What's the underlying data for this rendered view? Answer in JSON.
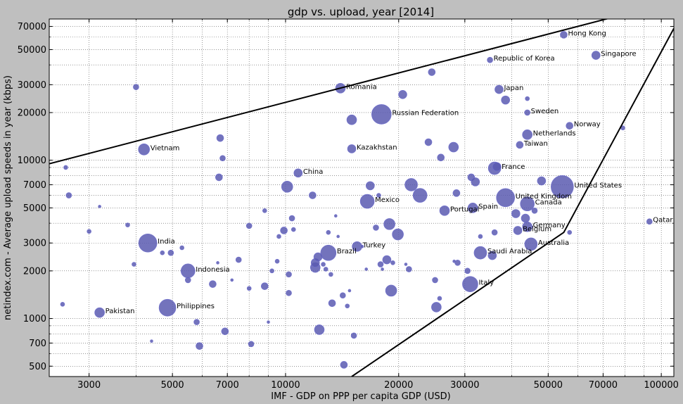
{
  "chart_data": {
    "type": "scatter",
    "title": "gdp vs. upload, year [2014]",
    "xlabel": "IMF - GDP on PPP per capita GDP (USD)",
    "ylabel": "netindex.com - Average upload speeds in year (kbps)",
    "xscale": "log",
    "yscale": "log",
    "xlim": [
      2350,
      108000
    ],
    "ylim": [
      430,
      78000
    ],
    "grid": true,
    "x_ticks": [
      3000,
      5000,
      7000,
      10000,
      20000,
      30000,
      50000,
      70000,
      100000
    ],
    "x_tick_labels": [
      "3000",
      "5000",
      "7000",
      "10000",
      "20000",
      "30000",
      "50000",
      "70000",
      "100000"
    ],
    "y_ticks": [
      500,
      700,
      1000,
      2000,
      3000,
      5000,
      7000,
      10000,
      20000,
      30000,
      50000,
      70000
    ],
    "y_tick_labels": [
      "500",
      "700",
      "1000",
      "2000",
      "3000",
      "5000",
      "7000",
      "10000",
      "20000",
      "30000",
      "50000",
      "70000"
    ],
    "colors": {
      "point_fill": "#5b5bb0",
      "point_stroke": "#6f6fd0",
      "background": "#bfbfbf",
      "plot_area": "#ffffff",
      "boundary_line": "#000000"
    },
    "boundary_lines": [
      [
        [
          2350,
          9500
        ],
        [
          82000,
          85000
        ]
      ],
      [
        [
          15000,
          430
        ],
        [
          55000,
          3500
        ],
        [
          108000,
          68000
        ]
      ]
    ],
    "points": [
      {
        "label": "Hong Kong",
        "x": 55000,
        "y": 62000,
        "size": 5
      },
      {
        "label": "Singapore",
        "x": 67000,
        "y": 46000,
        "size": 6
      },
      {
        "label": "Republic of Korea",
        "x": 35000,
        "y": 43000,
        "size": 4
      },
      {
        "label": "Japan",
        "x": 37000,
        "y": 28000,
        "size": 6
      },
      {
        "label": "Sweden",
        "x": 44000,
        "y": 20000,
        "size": 4
      },
      {
        "label": "Norway",
        "x": 57000,
        "y": 16500,
        "size": 5
      },
      {
        "label": "Netherlands",
        "x": 44000,
        "y": 14500,
        "size": 7
      },
      {
        "label": "Taiwan",
        "x": 42000,
        "y": 12500,
        "size": 5
      },
      {
        "label": "Romania",
        "x": 14000,
        "y": 28500,
        "size": 7
      },
      {
        "label": "Russian Federation",
        "x": 18000,
        "y": 19500,
        "size": 14
      },
      {
        "label": "Kazakhstan",
        "x": 15000,
        "y": 11800,
        "size": 6
      },
      {
        "label": "Vietnam",
        "x": 4200,
        "y": 11700,
        "size": 8
      },
      {
        "label": "China",
        "x": 10800,
        "y": 8300,
        "size": 6
      },
      {
        "label": "France",
        "x": 36000,
        "y": 8900,
        "size": 9
      },
      {
        "label": "United States",
        "x": 54500,
        "y": 6800,
        "size": 16
      },
      {
        "label": "United Kingdom",
        "x": 38500,
        "y": 5800,
        "size": 13
      },
      {
        "label": "Canada",
        "x": 44000,
        "y": 5300,
        "size": 10
      },
      {
        "label": "Mexico",
        "x": 16500,
        "y": 5500,
        "size": 10
      },
      {
        "label": "Spain",
        "x": 31500,
        "y": 5000,
        "size": 7
      },
      {
        "label": "Portugal",
        "x": 26500,
        "y": 4800,
        "size": 7
      },
      {
        "label": "Germany",
        "x": 44000,
        "y": 3800,
        "size": 7
      },
      {
        "label": "Belgium",
        "x": 41500,
        "y": 3600,
        "size": 6
      },
      {
        "label": "Australia",
        "x": 45000,
        "y": 2950,
        "size": 9
      },
      {
        "label": "Qatar",
        "x": 93000,
        "y": 4100,
        "size": 4
      },
      {
        "label": "India",
        "x": 4300,
        "y": 3000,
        "size": 13
      },
      {
        "label": "Brazil",
        "x": 13000,
        "y": 2600,
        "size": 11
      },
      {
        "label": "Turkey",
        "x": 15500,
        "y": 2850,
        "size": 7
      },
      {
        "label": "Saudi Arabia",
        "x": 33000,
        "y": 2600,
        "size": 9
      },
      {
        "label": "Indonesia",
        "x": 5500,
        "y": 2000,
        "size": 10
      },
      {
        "label": "Italy",
        "x": 31000,
        "y": 1650,
        "size": 11
      },
      {
        "label": "Philippines",
        "x": 4850,
        "y": 1170,
        "size": 12
      },
      {
        "label": "Pakistan",
        "x": 3200,
        "y": 1090,
        "size": 7
      },
      {
        "label": "",
        "x": 4000,
        "y": 29000,
        "size": 4
      },
      {
        "label": "",
        "x": 2600,
        "y": 9000,
        "size": 3
      },
      {
        "label": "",
        "x": 2650,
        "y": 6000,
        "size": 4
      },
      {
        "label": "",
        "x": 3200,
        "y": 5100,
        "size": 2
      },
      {
        "label": "",
        "x": 3800,
        "y": 3900,
        "size": 3
      },
      {
        "label": "",
        "x": 3000,
        "y": 3550,
        "size": 3
      },
      {
        "label": "",
        "x": 3950,
        "y": 2200,
        "size": 3
      },
      {
        "label": "",
        "x": 2550,
        "y": 1230,
        "size": 3
      },
      {
        "label": "",
        "x": 4400,
        "y": 720,
        "size": 2
      },
      {
        "label": "",
        "x": 4700,
        "y": 2600,
        "size": 3
      },
      {
        "label": "",
        "x": 4950,
        "y": 2600,
        "size": 4
      },
      {
        "label": "",
        "x": 5300,
        "y": 2800,
        "size": 3
      },
      {
        "label": "",
        "x": 5500,
        "y": 1750,
        "size": 4
      },
      {
        "label": "",
        "x": 5800,
        "y": 950,
        "size": 4
      },
      {
        "label": "",
        "x": 5900,
        "y": 670,
        "size": 5
      },
      {
        "label": "",
        "x": 6400,
        "y": 1650,
        "size": 5
      },
      {
        "label": "",
        "x": 6600,
        "y": 2250,
        "size": 2
      },
      {
        "label": "",
        "x": 6700,
        "y": 13800,
        "size": 5
      },
      {
        "label": "",
        "x": 6800,
        "y": 10300,
        "size": 4
      },
      {
        "label": "",
        "x": 6650,
        "y": 7800,
        "size": 5
      },
      {
        "label": "",
        "x": 6900,
        "y": 830,
        "size": 5
      },
      {
        "label": "",
        "x": 7200,
        "y": 1750,
        "size": 2
      },
      {
        "label": "",
        "x": 7500,
        "y": 2350,
        "size": 4
      },
      {
        "label": "",
        "x": 8000,
        "y": 1550,
        "size": 3
      },
      {
        "label": "",
        "x": 8000,
        "y": 3850,
        "size": 4
      },
      {
        "label": "",
        "x": 8100,
        "y": 690,
        "size": 4
      },
      {
        "label": "",
        "x": 8800,
        "y": 1600,
        "size": 5
      },
      {
        "label": "",
        "x": 8800,
        "y": 4800,
        "size": 3
      },
      {
        "label": "",
        "x": 9000,
        "y": 950,
        "size": 2
      },
      {
        "label": "",
        "x": 9200,
        "y": 2000,
        "size": 3
      },
      {
        "label": "",
        "x": 9500,
        "y": 2300,
        "size": 3
      },
      {
        "label": "",
        "x": 9600,
        "y": 3300,
        "size": 3
      },
      {
        "label": "",
        "x": 9900,
        "y": 3600,
        "size": 5
      },
      {
        "label": "",
        "x": 10100,
        "y": 6800,
        "size": 8
      },
      {
        "label": "",
        "x": 10200,
        "y": 1900,
        "size": 4
      },
      {
        "label": "",
        "x": 10200,
        "y": 1450,
        "size": 4
      },
      {
        "label": "",
        "x": 10400,
        "y": 4300,
        "size": 4
      },
      {
        "label": "",
        "x": 10500,
        "y": 3650,
        "size": 3
      },
      {
        "label": "",
        "x": 11800,
        "y": 6000,
        "size": 5
      },
      {
        "label": "",
        "x": 12000,
        "y": 2100,
        "size": 7
      },
      {
        "label": "",
        "x": 12000,
        "y": 2250,
        "size": 6
      },
      {
        "label": "",
        "x": 12200,
        "y": 2450,
        "size": 6
      },
      {
        "label": "",
        "x": 12300,
        "y": 850,
        "size": 7
      },
      {
        "label": "",
        "x": 12600,
        "y": 2200,
        "size": 3
      },
      {
        "label": "",
        "x": 12800,
        "y": 2050,
        "size": 3
      },
      {
        "label": "",
        "x": 13000,
        "y": 3500,
        "size": 3
      },
      {
        "label": "",
        "x": 13200,
        "y": 1900,
        "size": 3
      },
      {
        "label": "",
        "x": 13300,
        "y": 1250,
        "size": 5
      },
      {
        "label": "",
        "x": 13600,
        "y": 4450,
        "size": 2
      },
      {
        "label": "",
        "x": 13800,
        "y": 3300,
        "size": 2
      },
      {
        "label": "",
        "x": 14200,
        "y": 1400,
        "size": 4
      },
      {
        "label": "",
        "x": 14300,
        "y": 510,
        "size": 5
      },
      {
        "label": "",
        "x": 14600,
        "y": 1200,
        "size": 3
      },
      {
        "label": "",
        "x": 14800,
        "y": 1500,
        "size": 2
      },
      {
        "label": "",
        "x": 15000,
        "y": 18000,
        "size": 7
      },
      {
        "label": "",
        "x": 15200,
        "y": 780,
        "size": 4
      },
      {
        "label": "",
        "x": 16000,
        "y": 2850,
        "size": 2
      },
      {
        "label": "",
        "x": 16400,
        "y": 2050,
        "size": 2
      },
      {
        "label": "",
        "x": 16800,
        "y": 6900,
        "size": 6
      },
      {
        "label": "",
        "x": 17400,
        "y": 3750,
        "size": 4
      },
      {
        "label": "",
        "x": 17700,
        "y": 6000,
        "size": 3
      },
      {
        "label": "",
        "x": 17900,
        "y": 2200,
        "size": 4
      },
      {
        "label": "",
        "x": 18100,
        "y": 2050,
        "size": 2
      },
      {
        "label": "",
        "x": 18600,
        "y": 2350,
        "size": 6
      },
      {
        "label": "",
        "x": 18900,
        "y": 3950,
        "size": 8
      },
      {
        "label": "",
        "x": 19100,
        "y": 1500,
        "size": 8
      },
      {
        "label": "",
        "x": 19300,
        "y": 2250,
        "size": 3
      },
      {
        "label": "",
        "x": 19900,
        "y": 3400,
        "size": 8
      },
      {
        "label": "",
        "x": 20500,
        "y": 26000,
        "size": 6
      },
      {
        "label": "",
        "x": 20900,
        "y": 2200,
        "size": 2
      },
      {
        "label": "",
        "x": 21300,
        "y": 2050,
        "size": 4
      },
      {
        "label": "",
        "x": 21600,
        "y": 7000,
        "size": 9
      },
      {
        "label": "",
        "x": 22800,
        "y": 6000,
        "size": 10
      },
      {
        "label": "",
        "x": 24000,
        "y": 13000,
        "size": 5
      },
      {
        "label": "",
        "x": 24500,
        "y": 36000,
        "size": 5
      },
      {
        "label": "",
        "x": 25000,
        "y": 1750,
        "size": 4
      },
      {
        "label": "",
        "x": 25200,
        "y": 1180,
        "size": 7
      },
      {
        "label": "",
        "x": 25700,
        "y": 1340,
        "size": 3
      },
      {
        "label": "",
        "x": 25900,
        "y": 10400,
        "size": 5
      },
      {
        "label": "",
        "x": 28000,
        "y": 12100,
        "size": 7
      },
      {
        "label": "",
        "x": 28500,
        "y": 6200,
        "size": 5
      },
      {
        "label": "",
        "x": 28700,
        "y": 2250,
        "size": 4
      },
      {
        "label": "",
        "x": 28100,
        "y": 2300,
        "size": 2
      },
      {
        "label": "",
        "x": 30500,
        "y": 2000,
        "size": 4
      },
      {
        "label": "",
        "x": 31200,
        "y": 7800,
        "size": 5
      },
      {
        "label": "",
        "x": 32000,
        "y": 7300,
        "size": 6
      },
      {
        "label": "",
        "x": 33000,
        "y": 3300,
        "size": 3
      },
      {
        "label": "",
        "x": 35500,
        "y": 2500,
        "size": 6
      },
      {
        "label": "",
        "x": 36000,
        "y": 3500,
        "size": 4
      },
      {
        "label": "",
        "x": 36500,
        "y": 9100,
        "size": 6
      },
      {
        "label": "",
        "x": 38500,
        "y": 24000,
        "size": 6
      },
      {
        "label": "",
        "x": 41000,
        "y": 4600,
        "size": 6
      },
      {
        "label": "",
        "x": 43500,
        "y": 4300,
        "size": 6
      },
      {
        "label": "",
        "x": 44000,
        "y": 24500,
        "size": 3
      },
      {
        "label": "",
        "x": 46000,
        "y": 4800,
        "size": 4
      },
      {
        "label": "",
        "x": 48000,
        "y": 7400,
        "size": 6
      },
      {
        "label": "",
        "x": 57000,
        "y": 3500,
        "size": 3
      },
      {
        "label": "",
        "x": 79000,
        "y": 16000,
        "size": 3
      }
    ]
  }
}
